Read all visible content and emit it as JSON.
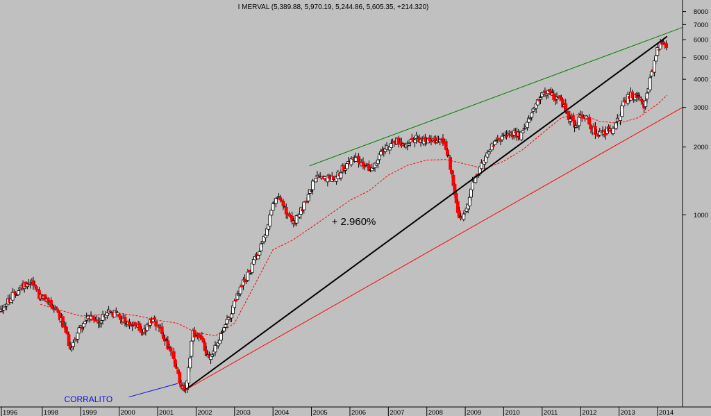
{
  "chart_data": {
    "type": "candlestick",
    "title": "I MERVAL (5,389.88, 5,970.19, 5,244.86, 5,605.35, +214.320)",
    "y_scale": "log",
    "ylim": [
      140,
      9000
    ],
    "y_ticks": [
      8000,
      7000,
      6000,
      5000,
      4000,
      3000,
      2000,
      1000
    ],
    "x_ticks": [
      "1996",
      "1998",
      "1999",
      "2000",
      "2001",
      "2002",
      "2003",
      "2004",
      "2005",
      "2006",
      "2007",
      "2008",
      "2009",
      "2010",
      "2011",
      "2012",
      "2013",
      "2014"
    ],
    "xlim": [
      1996.9,
      2014.65
    ],
    "grid": false,
    "colors": {
      "background": "#c0c0c0",
      "up": "#ffffff",
      "down": "#ff0000",
      "outline": "#000000",
      "moving_average": "#ff0000",
      "black_trendline": "#000000",
      "green_trendline": "#008000",
      "red_trendline": "#ff0000",
      "annotation_blue": "#1010e0"
    },
    "price_path": [
      {
        "x": 1996.92,
        "y": 380
      },
      {
        "x": 1997.15,
        "y": 420
      },
      {
        "x": 1997.4,
        "y": 470
      },
      {
        "x": 1997.7,
        "y": 510
      },
      {
        "x": 1997.85,
        "y": 470
      },
      {
        "x": 1997.95,
        "y": 430
      },
      {
        "x": 1998.15,
        "y": 410
      },
      {
        "x": 1998.4,
        "y": 380
      },
      {
        "x": 1998.6,
        "y": 300
      },
      {
        "x": 1998.75,
        "y": 255
      },
      {
        "x": 1998.95,
        "y": 310
      },
      {
        "x": 1999.2,
        "y": 350
      },
      {
        "x": 1999.45,
        "y": 330
      },
      {
        "x": 1999.7,
        "y": 370
      },
      {
        "x": 1999.95,
        "y": 360
      },
      {
        "x": 2000.2,
        "y": 330
      },
      {
        "x": 2000.45,
        "y": 320
      },
      {
        "x": 2000.65,
        "y": 300
      },
      {
        "x": 2000.85,
        "y": 345
      },
      {
        "x": 2001.05,
        "y": 320
      },
      {
        "x": 2001.2,
        "y": 280
      },
      {
        "x": 2001.4,
        "y": 230
      },
      {
        "x": 2001.6,
        "y": 175
      },
      {
        "x": 2001.75,
        "y": 165
      },
      {
        "x": 2001.9,
        "y": 300
      },
      {
        "x": 2002.1,
        "y": 290
      },
      {
        "x": 2002.3,
        "y": 235
      },
      {
        "x": 2002.5,
        "y": 255
      },
      {
        "x": 2002.7,
        "y": 300
      },
      {
        "x": 2002.9,
        "y": 360
      },
      {
        "x": 2003.15,
        "y": 470
      },
      {
        "x": 2003.4,
        "y": 560
      },
      {
        "x": 2003.65,
        "y": 710
      },
      {
        "x": 2003.85,
        "y": 880
      },
      {
        "x": 2004.0,
        "y": 1090
      },
      {
        "x": 2004.15,
        "y": 1250
      },
      {
        "x": 2004.35,
        "y": 1000
      },
      {
        "x": 2004.55,
        "y": 920
      },
      {
        "x": 2004.75,
        "y": 1050
      },
      {
        "x": 2004.95,
        "y": 1250
      },
      {
        "x": 2005.15,
        "y": 1520
      },
      {
        "x": 2005.4,
        "y": 1450
      },
      {
        "x": 2005.65,
        "y": 1500
      },
      {
        "x": 2005.9,
        "y": 1650
      },
      {
        "x": 2006.15,
        "y": 1820
      },
      {
        "x": 2006.4,
        "y": 1600
      },
      {
        "x": 2006.65,
        "y": 1680
      },
      {
        "x": 2006.9,
        "y": 2000
      },
      {
        "x": 2007.15,
        "y": 2150
      },
      {
        "x": 2007.4,
        "y": 2050
      },
      {
        "x": 2007.65,
        "y": 2200
      },
      {
        "x": 2007.9,
        "y": 2100
      },
      {
        "x": 2008.15,
        "y": 2150
      },
      {
        "x": 2008.35,
        "y": 2100
      },
      {
        "x": 2008.5,
        "y": 2000
      },
      {
        "x": 2008.6,
        "y": 1700
      },
      {
        "x": 2008.75,
        "y": 1200
      },
      {
        "x": 2008.85,
        "y": 950
      },
      {
        "x": 2009.05,
        "y": 1050
      },
      {
        "x": 2009.2,
        "y": 1400
      },
      {
        "x": 2009.45,
        "y": 1700
      },
      {
        "x": 2009.7,
        "y": 2000
      },
      {
        "x": 2009.95,
        "y": 2200
      },
      {
        "x": 2010.2,
        "y": 2300
      },
      {
        "x": 2010.45,
        "y": 2250
      },
      {
        "x": 2010.65,
        "y": 2600
      },
      {
        "x": 2010.85,
        "y": 3200
      },
      {
        "x": 2011.05,
        "y": 3550
      },
      {
        "x": 2011.25,
        "y": 3400
      },
      {
        "x": 2011.45,
        "y": 3300
      },
      {
        "x": 2011.65,
        "y": 2800
      },
      {
        "x": 2011.85,
        "y": 2500
      },
      {
        "x": 2012.1,
        "y": 2800
      },
      {
        "x": 2012.3,
        "y": 2400
      },
      {
        "x": 2012.5,
        "y": 2300
      },
      {
        "x": 2012.7,
        "y": 2350
      },
      {
        "x": 2012.9,
        "y": 2450
      },
      {
        "x": 2013.1,
        "y": 3100
      },
      {
        "x": 2013.3,
        "y": 3400
      },
      {
        "x": 2013.5,
        "y": 3300
      },
      {
        "x": 2013.65,
        "y": 3000
      },
      {
        "x": 2013.85,
        "y": 4300
      },
      {
        "x": 2014.0,
        "y": 5500
      },
      {
        "x": 2014.15,
        "y": 5800
      },
      {
        "x": 2014.25,
        "y": 5605
      }
    ],
    "moving_average": [
      {
        "x": 1997.95,
        "y": 400
      },
      {
        "x": 1998.5,
        "y": 375
      },
      {
        "x": 1999.0,
        "y": 355
      },
      {
        "x": 1999.5,
        "y": 360
      },
      {
        "x": 2000.0,
        "y": 365
      },
      {
        "x": 2000.5,
        "y": 355
      },
      {
        "x": 2001.0,
        "y": 340
      },
      {
        "x": 2001.5,
        "y": 330
      },
      {
        "x": 2002.0,
        "y": 300
      },
      {
        "x": 2002.5,
        "y": 290
      },
      {
        "x": 2003.0,
        "y": 330
      },
      {
        "x": 2003.5,
        "y": 480
      },
      {
        "x": 2004.0,
        "y": 700
      },
      {
        "x": 2004.5,
        "y": 770
      },
      {
        "x": 2005.0,
        "y": 880
      },
      {
        "x": 2005.5,
        "y": 1010
      },
      {
        "x": 2006.0,
        "y": 1160
      },
      {
        "x": 2006.5,
        "y": 1280
      },
      {
        "x": 2007.0,
        "y": 1500
      },
      {
        "x": 2007.5,
        "y": 1660
      },
      {
        "x": 2008.0,
        "y": 1750
      },
      {
        "x": 2008.5,
        "y": 1760
      },
      {
        "x": 2009.0,
        "y": 1680
      },
      {
        "x": 2009.5,
        "y": 1600
      },
      {
        "x": 2010.0,
        "y": 1730
      },
      {
        "x": 2010.5,
        "y": 1950
      },
      {
        "x": 2011.0,
        "y": 2300
      },
      {
        "x": 2011.5,
        "y": 2700
      },
      {
        "x": 2012.0,
        "y": 2800
      },
      {
        "x": 2012.5,
        "y": 2600
      },
      {
        "x": 2013.0,
        "y": 2550
      },
      {
        "x": 2013.5,
        "y": 2700
      },
      {
        "x": 2014.0,
        "y": 3100
      },
      {
        "x": 2014.25,
        "y": 3400
      }
    ],
    "trendlines": [
      {
        "color": "black",
        "points": [
          {
            "x": 2001.68,
            "y": 165
          },
          {
            "x": 2014.25,
            "y": 6200
          }
        ]
      },
      {
        "color": "green",
        "points": [
          {
            "x": 2004.95,
            "y": 1650
          },
          {
            "x": 2014.65,
            "y": 6800
          }
        ]
      },
      {
        "color": "red",
        "points": [
          {
            "x": 2001.68,
            "y": 165
          },
          {
            "x": 2014.65,
            "y": 3000
          }
        ]
      }
    ],
    "annotations": [
      {
        "text": "+ 2.960%",
        "x": 2006.1,
        "y": 900
      },
      {
        "text": "CORRALITO",
        "x": 1999.2,
        "y": 147
      }
    ]
  }
}
